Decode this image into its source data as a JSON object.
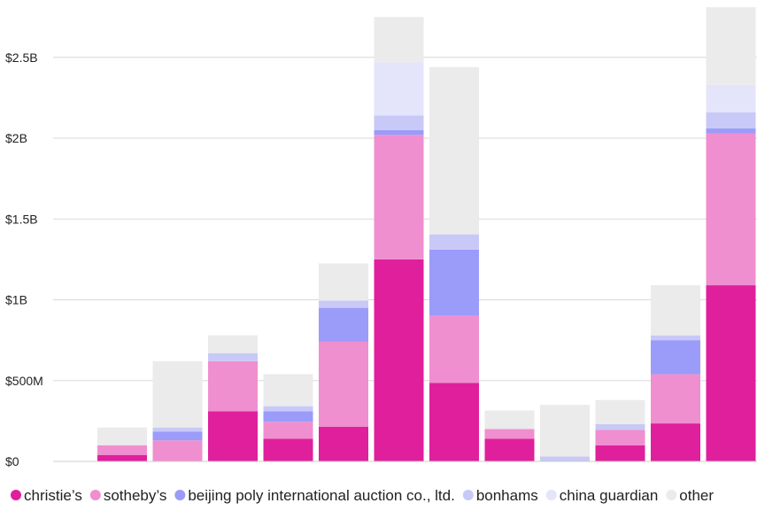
{
  "chart_data": {
    "type": "bar",
    "stacked": true,
    "title": "",
    "xlabel": "",
    "ylabel": "",
    "ylim": [
      0,
      2800000000
    ],
    "y_ticks": [
      {
        "value": 0,
        "label": "$0"
      },
      {
        "value": 500000000,
        "label": "$500M"
      },
      {
        "value": 1000000000,
        "label": "$1B"
      },
      {
        "value": 1500000000,
        "label": "$1.5B"
      },
      {
        "value": 2000000000,
        "label": "$2B"
      },
      {
        "value": 2500000000,
        "label": "$2.5B"
      }
    ],
    "grid": true,
    "legend_position": "bottom",
    "categories": [
      "",
      "",
      "",
      "",
      "",
      "",
      "",
      "",
      "",
      "",
      "",
      ""
    ],
    "series": [
      {
        "name": "christie’s",
        "color": "#e01f9c",
        "values": [
          40000000,
          0,
          310000000,
          140000000,
          215000000,
          1250000000,
          485000000,
          140000000,
          0,
          100000000,
          235000000,
          1090000000
        ]
      },
      {
        "name": "sotheby’s",
        "color": "#ef8fcf",
        "values": [
          60000000,
          130000000,
          310000000,
          105000000,
          525000000,
          770000000,
          415000000,
          60000000,
          0,
          95000000,
          305000000,
          940000000
        ]
      },
      {
        "name": "beijing poly international auction co., ltd.",
        "color": "#9b9bfa",
        "values": [
          0,
          55000000,
          0,
          65000000,
          210000000,
          30000000,
          410000000,
          0,
          0,
          0,
          210000000,
          30000000
        ]
      },
      {
        "name": "bonhams",
        "color": "#c9c9f7",
        "values": [
          0,
          25000000,
          50000000,
          30000000,
          45000000,
          90000000,
          95000000,
          0,
          30000000,
          35000000,
          30000000,
          100000000
        ]
      },
      {
        "name": "china guardian",
        "color": "#e4e4fb",
        "values": [
          0,
          0,
          0,
          10000000,
          0,
          330000000,
          0,
          0,
          0,
          0,
          0,
          170000000
        ]
      },
      {
        "name": "other",
        "color": "#ebebeb",
        "values": [
          110000000,
          410000000,
          110000000,
          190000000,
          230000000,
          280000000,
          1035000000,
          115000000,
          320000000,
          150000000,
          310000000,
          480000000
        ]
      }
    ]
  }
}
